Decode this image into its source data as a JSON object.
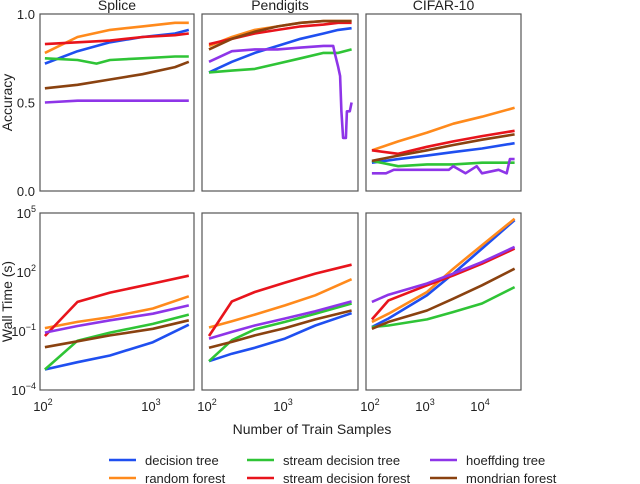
{
  "chart_data": {
    "type": "line",
    "xlabel": "Number of Train Samples",
    "colors": {
      "decision tree": "#1f4ff0",
      "random forest": "#ff8a1c",
      "stream decision tree": "#2fc436",
      "stream decision forest": "#e8141c",
      "hoeffding tree": "#8e35e8",
      "mondrian forest": "#8a4210"
    },
    "legend": {
      "placement": "bottom",
      "entries": [
        "decision tree",
        "random forest",
        "stream decision tree",
        "stream decision forest",
        "hoeffding tree",
        "mondrian forest"
      ]
    },
    "rows": [
      {
        "ylabel": "Accuracy",
        "yscale": "linear",
        "ylim": [
          0,
          1
        ],
        "yticks": [
          {
            "v": 0,
            "label": "0.0"
          },
          {
            "v": 0.5,
            "label": "0.5"
          },
          {
            "v": 1,
            "label": "1.0"
          }
        ]
      },
      {
        "ylabel": "Wall Time (s)",
        "yscale": "log",
        "ylim": [
          0.0001,
          100000
        ],
        "yticks": [
          {
            "v": 0.0001,
            "base": "10",
            "exp": "−4"
          },
          {
            "v": 0.1,
            "base": "10",
            "exp": "−1"
          },
          {
            "v": 100,
            "base": "10",
            "exp": "2"
          },
          {
            "v": 100000,
            "base": "10",
            "exp": "5"
          }
        ]
      }
    ],
    "panels": [
      {
        "title": "Splice",
        "xscale": "log",
        "xlim": [
          90,
          2400
        ],
        "xticks": [
          {
            "v": 100,
            "base": "10",
            "exp": "2"
          },
          {
            "v": 1000,
            "base": "10",
            "exp": "3"
          }
        ],
        "accuracy": [
          {
            "name": "decision tree",
            "x": [
              100,
              200,
              400,
              800,
              1600,
              2150
            ],
            "y": [
              0.72,
              0.79,
              0.84,
              0.87,
              0.89,
              0.91
            ]
          },
          {
            "name": "random forest",
            "x": [
              100,
              200,
              400,
              800,
              1600,
              2150
            ],
            "y": [
              0.78,
              0.87,
              0.91,
              0.93,
              0.95,
              0.95
            ]
          },
          {
            "name": "stream decision tree",
            "x": [
              100,
              200,
              300,
              400,
              800,
              1600,
              2150
            ],
            "y": [
              0.75,
              0.74,
              0.72,
              0.74,
              0.75,
              0.76,
              0.76
            ]
          },
          {
            "name": "stream decision forest",
            "x": [
              100,
              200,
              400,
              800,
              1600,
              2150
            ],
            "y": [
              0.83,
              0.84,
              0.85,
              0.87,
              0.88,
              0.89
            ]
          },
          {
            "name": "hoeffding tree",
            "x": [
              100,
              200,
              400,
              800,
              1600,
              2150
            ],
            "y": [
              0.5,
              0.51,
              0.51,
              0.51,
              0.51,
              0.51
            ]
          },
          {
            "name": "mondrian forest",
            "x": [
              100,
              200,
              400,
              800,
              1600,
              2150
            ],
            "y": [
              0.58,
              0.6,
              0.63,
              0.66,
              0.7,
              0.73
            ]
          }
        ],
        "wall_time": [
          {
            "name": "decision tree",
            "x": [
              100,
              200,
              400,
              1000,
              2150
            ],
            "y": [
              0.0011,
              0.0026,
              0.0057,
              0.027,
              0.21
            ]
          },
          {
            "name": "random forest",
            "x": [
              100,
              200,
              400,
              1000,
              2150
            ],
            "y": [
              0.14,
              0.29,
              0.51,
              1.4,
              5.8
            ]
          },
          {
            "name": "stream decision tree",
            "x": [
              100,
              200,
              400,
              1000,
              2150
            ],
            "y": [
              0.0011,
              0.032,
              0.083,
              0.23,
              0.68
            ]
          },
          {
            "name": "stream decision forest",
            "x": [
              100,
              200,
              400,
              1000,
              2150
            ],
            "y": [
              0.056,
              3.0,
              9,
              26,
              65
            ]
          },
          {
            "name": "hoeffding tree",
            "x": [
              100,
              200,
              400,
              1000,
              2150
            ],
            "y": [
              0.083,
              0.18,
              0.35,
              0.76,
              2.0
            ]
          },
          {
            "name": "mondrian forest",
            "x": [
              100,
              200,
              400,
              1000,
              2150
            ],
            "y": [
              0.015,
              0.03,
              0.06,
              0.13,
              0.35
            ]
          }
        ]
      },
      {
        "title": "Pendigits",
        "xscale": "log",
        "xlim": [
          81,
          9100
        ],
        "xticks": [
          {
            "v": 100,
            "base": "10",
            "exp": "2"
          },
          {
            "v": 1000,
            "base": "10",
            "exp": "3"
          }
        ],
        "accuracy": [
          {
            "name": "decision tree",
            "x": [
              100,
              200,
              400,
              800,
              1600,
              3200,
              5000,
              7500
            ],
            "y": [
              0.67,
              0.73,
              0.78,
              0.82,
              0.86,
              0.89,
              0.91,
              0.92
            ]
          },
          {
            "name": "random forest",
            "x": [
              100,
              200,
              400,
              800,
              1600,
              3200,
              5000,
              7500
            ],
            "y": [
              0.82,
              0.87,
              0.91,
              0.93,
              0.95,
              0.96,
              0.96,
              0.96
            ]
          },
          {
            "name": "stream decision tree",
            "x": [
              100,
              200,
              400,
              800,
              1600,
              3200,
              5000,
              7500
            ],
            "y": [
              0.67,
              0.68,
              0.69,
              0.72,
              0.75,
              0.78,
              0.78,
              0.8
            ]
          },
          {
            "name": "stream decision forest",
            "x": [
              100,
              200,
              400,
              800,
              1600,
              3200,
              5000,
              7500
            ],
            "y": [
              0.83,
              0.86,
              0.89,
              0.91,
              0.93,
              0.94,
              0.95,
              0.95
            ]
          },
          {
            "name": "hoeffding tree",
            "x": [
              100,
              200,
              400,
              800,
              1600,
              3200,
              4300,
              4500,
              5000,
              5300,
              5500,
              5800,
              6300,
              6500,
              7100,
              7500
            ],
            "y": [
              0.73,
              0.79,
              0.8,
              0.8,
              0.81,
              0.82,
              0.82,
              0.78,
              0.7,
              0.65,
              0.45,
              0.3,
              0.3,
              0.45,
              0.45,
              0.5
            ]
          },
          {
            "name": "mondrian forest",
            "x": [
              100,
              200,
              400,
              800,
              1600,
              3200,
              5000,
              7500
            ],
            "y": [
              0.8,
              0.86,
              0.9,
              0.93,
              0.95,
              0.96,
              0.96,
              0.96
            ]
          }
        ],
        "wall_time": [
          {
            "name": "decision tree",
            "x": [
              100,
              200,
              400,
              1000,
              2500,
              7500
            ],
            "y": [
              0.0029,
              0.007,
              0.014,
              0.041,
              0.19,
              0.8
            ]
          },
          {
            "name": "random forest",
            "x": [
              100,
              200,
              400,
              1000,
              2500,
              7500
            ],
            "y": [
              0.15,
              0.31,
              0.68,
              2,
              6.5,
              43
            ]
          },
          {
            "name": "stream decision tree",
            "x": [
              100,
              200,
              400,
              1000,
              2500,
              7500
            ],
            "y": [
              0.0029,
              0.034,
              0.12,
              0.29,
              0.76,
              2.5
            ]
          },
          {
            "name": "stream decision forest",
            "x": [
              100,
              200,
              400,
              1000,
              2500,
              7500
            ],
            "y": [
              0.056,
              3.2,
              9.6,
              29,
              83,
              235
            ]
          },
          {
            "name": "hoeffding tree",
            "x": [
              100,
              200,
              400,
              1000,
              2500,
              7500
            ],
            "y": [
              0.041,
              0.09,
              0.19,
              0.43,
              1.0,
              3.2
            ]
          },
          {
            "name": "mondrian forest",
            "x": [
              100,
              200,
              400,
              1000,
              2500,
              7500
            ],
            "y": [
              0.014,
              0.028,
              0.06,
              0.14,
              0.39,
              1.1
            ]
          }
        ]
      },
      {
        "title": "CIFAR-10",
        "xscale": "log",
        "xlim": [
          78,
          51000
        ],
        "xticks": [
          {
            "v": 100,
            "base": "10",
            "exp": "2"
          },
          {
            "v": 1000,
            "base": "10",
            "exp": "3"
          },
          {
            "v": 10000,
            "base": "10",
            "exp": "4"
          }
        ],
        "accuracy": [
          {
            "name": "decision tree",
            "x": [
              100,
              300,
              1000,
              3000,
              10000,
              39000
            ],
            "y": [
              0.16,
              0.18,
              0.2,
              0.22,
              0.24,
              0.27
            ]
          },
          {
            "name": "random forest",
            "x": [
              100,
              300,
              1000,
              3000,
              10000,
              39000
            ],
            "y": [
              0.23,
              0.28,
              0.33,
              0.38,
              0.42,
              0.47
            ]
          },
          {
            "name": "stream decision tree",
            "x": [
              100,
              300,
              1000,
              3000,
              10000,
              39000
            ],
            "y": [
              0.17,
              0.14,
              0.15,
              0.15,
              0.16,
              0.16
            ]
          },
          {
            "name": "stream decision forest",
            "x": [
              100,
              300,
              1000,
              3000,
              10000,
              39000
            ],
            "y": [
              0.23,
              0.21,
              0.25,
              0.28,
              0.31,
              0.34
            ]
          },
          {
            "name": "hoeffding tree",
            "x": [
              100,
              180,
              250,
              1000,
              2500,
              3000,
              5000,
              8000,
              10000,
              20000,
              28000,
              32000,
              39000
            ],
            "y": [
              0.1,
              0.1,
              0.12,
              0.12,
              0.12,
              0.14,
              0.1,
              0.14,
              0.1,
              0.12,
              0.1,
              0.18,
              0.18
            ]
          },
          {
            "name": "mondrian forest",
            "x": [
              100,
              300,
              1000,
              3000,
              10000,
              39000
            ],
            "y": [
              0.17,
              0.2,
              0.23,
              0.26,
              0.29,
              0.32
            ]
          }
        ],
        "wall_time": [
          {
            "name": "decision tree",
            "x": [
              100,
              200,
              1000,
              3000,
              10000,
              39000
            ],
            "y": [
              0.16,
              0.43,
              6.5,
              83,
              1550,
              43000
            ]
          },
          {
            "name": "random forest",
            "x": [
              100,
              200,
              1000,
              3000,
              10000,
              39000
            ],
            "y": [
              0.29,
              0.76,
              9.6,
              147,
              2300,
              51000
            ]
          },
          {
            "name": "stream decision tree",
            "x": [
              100,
              200,
              1000,
              3000,
              10000,
              39000
            ],
            "y": [
              0.16,
              0.19,
              0.39,
              0.93,
              2.5,
              17
            ]
          },
          {
            "name": "stream decision forest",
            "x": [
              100,
              200,
              1000,
              3000,
              10000,
              39000
            ],
            "y": [
              0.39,
              3.6,
              21,
              67,
              265,
              1550
            ]
          },
          {
            "name": "hoeffding tree",
            "x": [
              100,
              200,
              1000,
              3000,
              10000,
              39000
            ],
            "y": [
              3,
              7,
              26,
              83,
              320,
              1900
            ]
          },
          {
            "name": "mondrian forest",
            "x": [
              100,
              200,
              1000,
              3000,
              10000,
              39000
            ],
            "y": [
              0.13,
              0.29,
              1.1,
              4.4,
              21,
              147
            ]
          }
        ]
      }
    ]
  }
}
